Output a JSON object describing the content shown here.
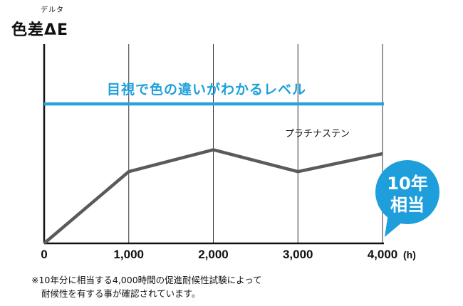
{
  "chart_data": {
    "type": "line",
    "ylabel": "色差ΔE",
    "ylabel_ruby": "デルタ",
    "x_unit": "(h)",
    "x": [
      0,
      1000,
      2000,
      3000,
      4000
    ],
    "x_tick_labels": [
      "0",
      "1,000",
      "2,000",
      "3,000",
      "4,000"
    ],
    "xlim": [
      0,
      4000
    ],
    "ylim": [
      0,
      1
    ],
    "grid": "vertical",
    "series": [
      {
        "name": "プラチナステン",
        "values": [
          0,
          0.36,
          0.47,
          0.36,
          0.45
        ],
        "color": "#5a5a5a"
      }
    ],
    "threshold": {
      "label": "目視で色の違いがわかるレベル",
      "value": 0.7,
      "color": "#29a3dd"
    },
    "badge": {
      "line1": "10年",
      "line2": "相当",
      "color": "#1e9fdb"
    }
  },
  "footnote": {
    "line1": "※10年分に相当する4,000時間の促進耐候性試験によって",
    "line2": "耐候性を有する事が確認されています。"
  }
}
